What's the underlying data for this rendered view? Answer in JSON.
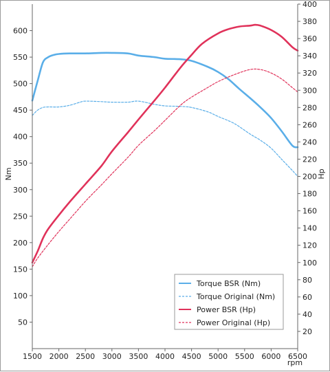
{
  "chart_data": {
    "type": "line",
    "xlabel": "rpm",
    "ylabel_left": "Nm",
    "ylabel_right": "Hp",
    "xlim": [
      1500,
      6500
    ],
    "ylim_left": [
      0,
      650
    ],
    "ylim_right": [
      0,
      400
    ],
    "x_ticks": [
      1500,
      2000,
      2500,
      3000,
      3500,
      4000,
      4500,
      5000,
      5500,
      6000,
      6500
    ],
    "y_left_ticks": [
      50,
      100,
      150,
      200,
      250,
      300,
      350,
      400,
      450,
      500,
      550,
      600
    ],
    "y_right_ticks": [
      20,
      40,
      60,
      80,
      100,
      120,
      140,
      160,
      180,
      200,
      220,
      240,
      260,
      280,
      300,
      320,
      340,
      360,
      380,
      400
    ],
    "grid": false,
    "legend_position": "bottom-right",
    "series": [
      {
        "name": "Torque BSR (Nm)",
        "axis": "left",
        "color": "#5aaee8",
        "dash": "solid",
        "x": [
          1500,
          1600,
          1700,
          1800,
          1900,
          2000,
          2200,
          2500,
          2800,
          3000,
          3300,
          3500,
          3800,
          4000,
          4300,
          4500,
          4800,
          5000,
          5200,
          5400,
          5600,
          5800,
          6000,
          6200,
          6400,
          6500
        ],
        "y": [
          468,
          505,
          540,
          550,
          554,
          556,
          557,
          557,
          558,
          558,
          557,
          553,
          550,
          547,
          546,
          543,
          532,
          522,
          508,
          490,
          473,
          455,
          435,
          410,
          383,
          380
        ]
      },
      {
        "name": "Torque Original (Nm)",
        "axis": "left",
        "color": "#5aaee8",
        "dash": "dashed",
        "x": [
          1500,
          1600,
          1700,
          1800,
          2000,
          2200,
          2400,
          2500,
          2800,
          3000,
          3300,
          3500,
          3800,
          4000,
          4300,
          4500,
          4800,
          5000,
          5300,
          5600,
          5800,
          6000,
          6200,
          6400,
          6500
        ],
        "y": [
          440,
          450,
          455,
          456,
          456,
          459,
          465,
          467,
          466,
          465,
          465,
          467,
          461,
          458,
          457,
          455,
          447,
          438,
          425,
          405,
          393,
          378,
          357,
          336,
          325
        ]
      },
      {
        "name": "Power BSR (Hp)",
        "axis": "right",
        "color": "#e0325a",
        "dash": "solid",
        "x": [
          1500,
          1600,
          1700,
          1800,
          2000,
          2200,
          2500,
          2800,
          3000,
          3300,
          3500,
          3800,
          4000,
          4300,
          4500,
          4700,
          5000,
          5200,
          5400,
          5600,
          5700,
          5800,
          6000,
          6200,
          6400,
          6500
        ],
        "y": [
          100,
          113,
          128,
          139,
          155,
          170,
          191,
          212,
          229,
          251,
          266,
          288,
          303,
          327,
          341,
          354,
          366,
          371,
          374,
          375,
          376,
          375,
          370,
          362,
          350,
          346
        ]
      },
      {
        "name": "Power Original (Hp)",
        "axis": "right",
        "color": "#e0325a",
        "dash": "dashed",
        "x": [
          1500,
          1600,
          1800,
          2000,
          2200,
          2500,
          2800,
          3000,
          3300,
          3500,
          3800,
          4000,
          4300,
          4500,
          4800,
          5000,
          5300,
          5600,
          5800,
          6000,
          6200,
          6400,
          6500
        ],
        "y": [
          95,
          105,
          121,
          136,
          150,
          171,
          190,
          203,
          222,
          236,
          253,
          265,
          283,
          292,
          303,
          310,
          318,
          324,
          324,
          320,
          313,
          303,
          298
        ]
      }
    ]
  }
}
